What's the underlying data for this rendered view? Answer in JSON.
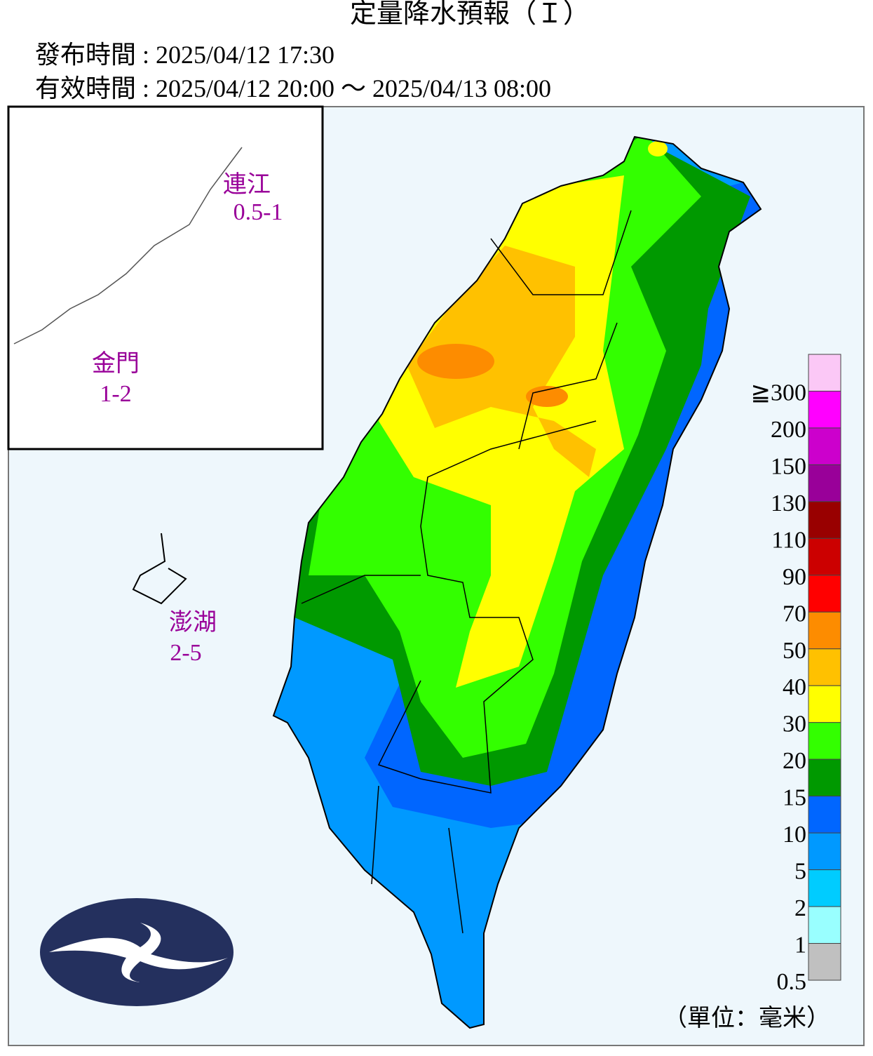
{
  "header": {
    "title": "定量降水預報（Ｉ）",
    "issued": "發布時間 : 2025/04/12 17:30",
    "valid": "有效時間 : 2025/04/12 20:00 ～ 2025/04/13 08:00"
  },
  "regions": [
    {
      "name": "連江",
      "value": "0.5-1"
    },
    {
      "name": "金門",
      "value": "1-2"
    },
    {
      "name": "澎湖",
      "value": "2-5"
    }
  ],
  "legend": {
    "unit": "（單位：毫米）",
    "items": [
      {
        "label": "≧300",
        "color": "#fbc8f6"
      },
      {
        "label": "200",
        "color": "#ff00ff"
      },
      {
        "label": "150",
        "color": "#cc00cc"
      },
      {
        "label": "130",
        "color": "#990099"
      },
      {
        "label": "110",
        "color": "#990000"
      },
      {
        "label": "90",
        "color": "#cc0000"
      },
      {
        "label": "70",
        "color": "#ff0000"
      },
      {
        "label": "50",
        "color": "#fd8c00"
      },
      {
        "label": "40",
        "color": "#ffc100"
      },
      {
        "label": "30",
        "color": "#ffff00"
      },
      {
        "label": "20",
        "color": "#33ff00"
      },
      {
        "label": "15",
        "color": "#009900"
      },
      {
        "label": "10",
        "color": "#0066ff"
      },
      {
        "label": "5",
        "color": "#0099ff"
      },
      {
        "label": "2",
        "color": "#00ccff"
      },
      {
        "label": "1",
        "color": "#99ffff"
      },
      {
        "label": "0.5",
        "color": "#c0c0c0"
      }
    ]
  }
}
